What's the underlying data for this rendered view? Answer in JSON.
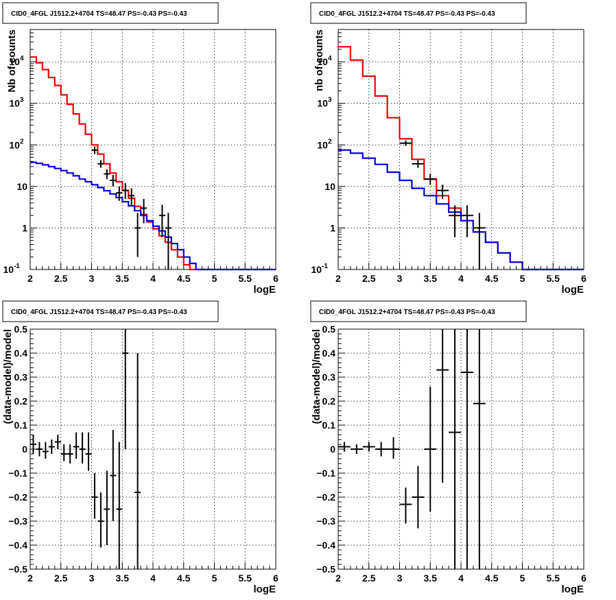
{
  "chart_data": [
    {
      "type": "line",
      "title": "CID0_4FGL J1512.2+4704 TS=48.47 PS=-0.43 PS=-0.43",
      "xlabel": "logE",
      "ylabel": "Nb of counts",
      "xlim": [
        2,
        6
      ],
      "ylim": [
        0.1,
        60000
      ],
      "yscale": "log",
      "grid": true,
      "x_ticks": [
        "2",
        "2.5",
        "3",
        "3.5",
        "4",
        "4.5",
        "5",
        "5.5",
        "6"
      ],
      "y_ticks": [
        {
          "value": 0.1,
          "label": "10",
          "exp": "-1"
        },
        {
          "value": 1,
          "label": "1",
          "exp": ""
        },
        {
          "value": 10,
          "label": "10",
          "exp": ""
        },
        {
          "value": 100,
          "label": "10",
          "exp": "2"
        },
        {
          "value": 1000,
          "label": "10",
          "exp": "3"
        },
        {
          "value": 10000,
          "label": "10",
          "exp": "4"
        }
      ],
      "bin_edges": [
        2.0,
        2.1,
        2.2,
        2.3,
        2.4,
        2.5,
        2.6,
        2.7,
        2.8,
        2.9,
        3.0,
        3.1,
        3.2,
        3.3,
        3.4,
        3.5,
        3.6,
        3.7,
        3.8,
        3.9,
        4.0,
        4.1,
        4.2,
        4.3,
        4.4,
        4.5,
        4.6,
        4.7,
        4.8,
        4.9,
        5.0,
        5.1,
        5.2,
        5.3,
        5.4,
        5.5,
        5.6,
        5.7,
        5.8,
        5.9,
        6.0
      ],
      "series": [
        {
          "color": "#ee0000",
          "style": "step",
          "values": [
            13000,
            9500,
            6500,
            4200,
            2700,
            1600,
            950,
            560,
            320,
            180,
            100,
            60,
            35,
            21,
            13,
            8,
            5.2,
            3.3,
            2.1,
            1.4,
            0.95,
            0.65,
            0.45,
            0.3,
            0.2,
            0.13,
            0.1,
            0.1,
            0.1,
            0.1,
            0.1,
            0.1,
            0.1,
            0.1,
            0.1,
            0.1,
            0.1,
            0.1,
            0.1,
            0.1
          ]
        },
        {
          "color": "#0000dd",
          "style": "step",
          "values": [
            38,
            36,
            33,
            30,
            27,
            24,
            21,
            18,
            15,
            13,
            11,
            9.4,
            7.9,
            6.6,
            5.4,
            4.3,
            3.4,
            2.6,
            2.0,
            1.5,
            1.1,
            0.85,
            0.6,
            0.42,
            0.3,
            0.2,
            0.14,
            0.1,
            0.1,
            0.1,
            0.1,
            0.1,
            0.1,
            0.1,
            0.1,
            0.1,
            0.1,
            0.1,
            0.1,
            0.1
          ]
        },
        {
          "color": "#000000",
          "style": "errorbar",
          "points": [
            {
              "x": 3.05,
              "y": 75,
              "lo": 60,
              "hi": 92,
              "hw": 0.05
            },
            {
              "x": 3.15,
              "y": 35,
              "lo": 28,
              "hi": 43,
              "hw": 0.05
            },
            {
              "x": 3.25,
              "y": 20,
              "lo": 15,
              "hi": 26,
              "hw": 0.05
            },
            {
              "x": 3.35,
              "y": 14,
              "lo": 10,
              "hi": 19,
              "hw": 0.05
            },
            {
              "x": 3.45,
              "y": 7,
              "lo": 4.5,
              "hi": 10,
              "hw": 0.05
            },
            {
              "x": 3.55,
              "y": 8,
              "lo": 5,
              "hi": 12,
              "hw": 0.05
            },
            {
              "x": 3.65,
              "y": 6,
              "lo": 3.5,
              "hi": 9,
              "hw": 0.05
            },
            {
              "x": 3.75,
              "y": 1,
              "lo": 0.2,
              "hi": 2.3,
              "hw": 0.05
            },
            {
              "x": 3.85,
              "y": 3,
              "lo": 1.3,
              "hi": 5,
              "hw": 0.05
            },
            {
              "x": 4.15,
              "y": 2,
              "lo": 0.6,
              "hi": 3.6,
              "hw": 0.05
            },
            {
              "x": 4.25,
              "y": 1,
              "lo": 0.1,
              "hi": 2.3,
              "hw": 0.05
            }
          ]
        }
      ]
    },
    {
      "type": "line",
      "title": "CID0_4FGL J1512.2+4704 TS=48.47 PS=-0.43 PS=-0.43",
      "xlabel": "logE",
      "ylabel": "nb of counts",
      "xlim": [
        2,
        6
      ],
      "ylim": [
        0.1,
        60000
      ],
      "yscale": "log",
      "grid": true,
      "x_ticks": [
        "2",
        "2.5",
        "3",
        "3.5",
        "4",
        "4.5",
        "5",
        "5.5",
        "6"
      ],
      "y_ticks": [
        {
          "value": 0.1,
          "label": "10",
          "exp": "-1"
        },
        {
          "value": 1,
          "label": "1",
          "exp": ""
        },
        {
          "value": 10,
          "label": "10",
          "exp": ""
        },
        {
          "value": 100,
          "label": "10",
          "exp": "2"
        },
        {
          "value": 1000,
          "label": "10",
          "exp": "3"
        },
        {
          "value": 10000,
          "label": "10",
          "exp": "4"
        }
      ],
      "bin_edges": [
        2.0,
        2.2,
        2.4,
        2.6,
        2.8,
        3.0,
        3.2,
        3.4,
        3.6,
        3.8,
        4.0,
        4.2,
        4.4,
        4.6,
        4.8,
        5.0,
        5.2,
        5.4,
        5.6,
        5.8,
        6.0
      ],
      "series": [
        {
          "color": "#ee0000",
          "style": "step",
          "values": [
            23000,
            11000,
            4500,
            1500,
            450,
            140,
            45,
            15,
            6,
            3,
            1.5,
            0.8,
            0.45,
            0.25,
            0.15,
            0.1,
            0.1,
            0.1,
            0.1,
            0.1
          ]
        },
        {
          "color": "#0000dd",
          "style": "step",
          "values": [
            75,
            63,
            48,
            34,
            22,
            14,
            9,
            6,
            3.8,
            2.4,
            1.5,
            0.8,
            0.45,
            0.25,
            0.15,
            0.1,
            0.1,
            0.1,
            0.1,
            0.1
          ]
        },
        {
          "color": "#000000",
          "style": "errorbar",
          "points": [
            {
              "x": 3.1,
              "y": 110,
              "lo": 95,
              "hi": 128,
              "hw": 0.1
            },
            {
              "x": 3.3,
              "y": 35,
              "lo": 28,
              "hi": 43,
              "hw": 0.1
            },
            {
              "x": 3.5,
              "y": 15,
              "lo": 11,
              "hi": 20,
              "hw": 0.1
            },
            {
              "x": 3.7,
              "y": 8,
              "lo": 5,
              "hi": 11,
              "hw": 0.1
            },
            {
              "x": 3.9,
              "y": 2,
              "lo": 0.6,
              "hi": 3.5,
              "hw": 0.1
            },
            {
              "x": 4.1,
              "y": 2,
              "lo": 0.6,
              "hi": 3.5,
              "hw": 0.1
            },
            {
              "x": 4.3,
              "y": 1,
              "lo": 0.1,
              "hi": 2.3,
              "hw": 0.1
            }
          ]
        }
      ]
    },
    {
      "type": "scatter",
      "title": "CID0_4FGL J1512.2+4704 TS=48.47 PS=-0.43 PS=-0.43",
      "xlabel": "logE",
      "ylabel": "(data-model)/model",
      "xlim": [
        2,
        6
      ],
      "ylim": [
        -0.5,
        0.5
      ],
      "yscale": "linear",
      "grid": true,
      "x_ticks": [
        "2",
        "2.5",
        "3",
        "3.5",
        "4",
        "4.5",
        "5",
        "5.5",
        "6"
      ],
      "y_ticks": [
        {
          "value": -0.5,
          "label": "−0.5",
          "exp": ""
        },
        {
          "value": -0.4,
          "label": "−0.4",
          "exp": ""
        },
        {
          "value": -0.3,
          "label": "−0.3",
          "exp": ""
        },
        {
          "value": -0.2,
          "label": "−0.2",
          "exp": ""
        },
        {
          "value": -0.1,
          "label": "−0.1",
          "exp": ""
        },
        {
          "value": 0,
          "label": "0",
          "exp": ""
        },
        {
          "value": 0.1,
          "label": "0.1",
          "exp": ""
        },
        {
          "value": 0.2,
          "label": "0.2",
          "exp": ""
        },
        {
          "value": 0.3,
          "label": "0.3",
          "exp": ""
        },
        {
          "value": 0.4,
          "label": "0.4",
          "exp": ""
        },
        {
          "value": 0.5,
          "label": "0.5",
          "exp": ""
        }
      ],
      "series": [
        {
          "color": "#000000",
          "style": "errorbar",
          "points": [
            {
              "x": 2.05,
              "y": 0.02,
              "lo": -0.02,
              "hi": 0.06,
              "hw": 0.05
            },
            {
              "x": 2.15,
              "y": 0.0,
              "lo": -0.03,
              "hi": 0.03,
              "hw": 0.05
            },
            {
              "x": 2.25,
              "y": -0.01,
              "lo": -0.04,
              "hi": 0.03,
              "hw": 0.05
            },
            {
              "x": 2.35,
              "y": 0.01,
              "lo": -0.02,
              "hi": 0.04,
              "hw": 0.05
            },
            {
              "x": 2.45,
              "y": 0.03,
              "lo": 0.0,
              "hi": 0.06,
              "hw": 0.05
            },
            {
              "x": 2.55,
              "y": -0.02,
              "lo": -0.05,
              "hi": 0.02,
              "hw": 0.05
            },
            {
              "x": 2.65,
              "y": -0.02,
              "lo": -0.06,
              "hi": 0.02,
              "hw": 0.05
            },
            {
              "x": 2.75,
              "y": 0.01,
              "lo": -0.04,
              "hi": 0.07,
              "hw": 0.05
            },
            {
              "x": 2.85,
              "y": 0.0,
              "lo": -0.06,
              "hi": 0.07,
              "hw": 0.05
            },
            {
              "x": 2.95,
              "y": -0.02,
              "lo": -0.09,
              "hi": 0.07,
              "hw": 0.05
            },
            {
              "x": 3.05,
              "y": -0.2,
              "lo": -0.29,
              "hi": -0.1,
              "hw": 0.05
            },
            {
              "x": 3.15,
              "y": -0.3,
              "lo": -0.41,
              "hi": -0.18,
              "hw": 0.05
            },
            {
              "x": 3.25,
              "y": -0.25,
              "lo": -0.4,
              "hi": -0.09,
              "hw": 0.05
            },
            {
              "x": 3.35,
              "y": -0.11,
              "lo": -0.3,
              "hi": 0.08,
              "hw": 0.05
            },
            {
              "x": 3.45,
              "y": -0.25,
              "lo": -0.5,
              "hi": 0.03,
              "hw": 0.05
            },
            {
              "x": 3.55,
              "y": 0.4,
              "lo": 0.0,
              "hi": 0.5,
              "hw": 0.05
            },
            {
              "x": 3.75,
              "y": -0.18,
              "lo": -0.5,
              "hi": 0.4,
              "hw": 0.05
            }
          ]
        }
      ]
    },
    {
      "type": "scatter",
      "title": "CID0_4FGL J1512.2+4704 TS=48.47 PS=-0.43 PS=-0.43",
      "xlabel": "logE",
      "ylabel": "(data-model)/model",
      "xlim": [
        2,
        6
      ],
      "ylim": [
        -0.5,
        0.5
      ],
      "yscale": "linear",
      "grid": true,
      "x_ticks": [
        "2",
        "2.5",
        "3",
        "3.5",
        "4",
        "4.5",
        "5",
        "5.5",
        "6"
      ],
      "y_ticks": [
        {
          "value": -0.5,
          "label": "−0.5",
          "exp": ""
        },
        {
          "value": -0.4,
          "label": "−0.4",
          "exp": ""
        },
        {
          "value": -0.3,
          "label": "−0.3",
          "exp": ""
        },
        {
          "value": -0.2,
          "label": "−0.2",
          "exp": ""
        },
        {
          "value": -0.1,
          "label": "−0.1",
          "exp": ""
        },
        {
          "value": 0,
          "label": "0",
          "exp": ""
        },
        {
          "value": 0.1,
          "label": "0.1",
          "exp": ""
        },
        {
          "value": 0.2,
          "label": "0.2",
          "exp": ""
        },
        {
          "value": 0.3,
          "label": "0.3",
          "exp": ""
        },
        {
          "value": 0.4,
          "label": "0.4",
          "exp": ""
        },
        {
          "value": 0.5,
          "label": "0.5",
          "exp": ""
        }
      ],
      "series": [
        {
          "color": "#000000",
          "style": "errorbar",
          "points": [
            {
              "x": 2.1,
              "y": 0.01,
              "lo": -0.01,
              "hi": 0.03,
              "hw": 0.1
            },
            {
              "x": 2.3,
              "y": 0.0,
              "lo": -0.02,
              "hi": 0.02,
              "hw": 0.1
            },
            {
              "x": 2.5,
              "y": 0.01,
              "lo": -0.01,
              "hi": 0.03,
              "hw": 0.1
            },
            {
              "x": 2.7,
              "y": 0.0,
              "lo": -0.03,
              "hi": 0.03,
              "hw": 0.1
            },
            {
              "x": 2.9,
              "y": 0.0,
              "lo": -0.04,
              "hi": 0.05,
              "hw": 0.1
            },
            {
              "x": 3.1,
              "y": -0.23,
              "lo": -0.31,
              "hi": -0.16,
              "hw": 0.1
            },
            {
              "x": 3.3,
              "y": -0.2,
              "lo": -0.33,
              "hi": -0.07,
              "hw": 0.1
            },
            {
              "x": 3.5,
              "y": 0.0,
              "lo": -0.26,
              "hi": 0.26,
              "hw": 0.1
            },
            {
              "x": 3.7,
              "y": 0.33,
              "lo": -0.14,
              "hi": 0.5,
              "hw": 0.1
            },
            {
              "x": 3.9,
              "y": 0.07,
              "lo": -0.5,
              "hi": 0.5,
              "hw": 0.1
            },
            {
              "x": 4.1,
              "y": 0.32,
              "lo": -0.5,
              "hi": 0.5,
              "hw": 0.1
            },
            {
              "x": 4.3,
              "y": 0.19,
              "lo": -0.5,
              "hi": 0.5,
              "hw": 0.1
            }
          ]
        }
      ]
    }
  ]
}
